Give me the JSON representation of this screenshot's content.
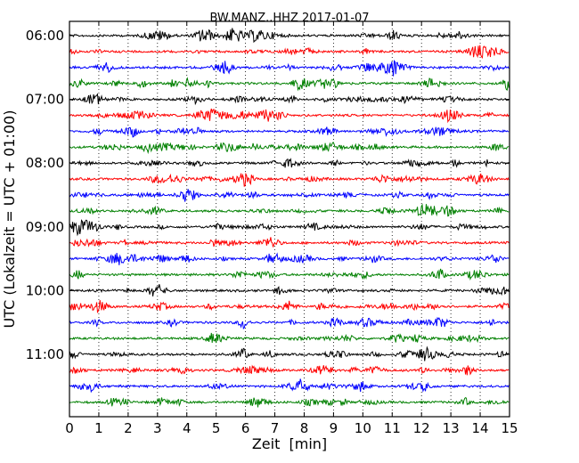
{
  "chart_data": {
    "type": "line",
    "title": "BW.MANZ..HHZ 2017-01-07",
    "xlabel": "Zeit  [min]",
    "ylabel": "UTC (Lokalzeit = UTC + 01:00)",
    "xlim": [
      0,
      15
    ],
    "x_ticks": [
      "0",
      "1",
      "2",
      "3",
      "4",
      "5",
      "6",
      "7",
      "8",
      "9",
      "10",
      "11",
      "12",
      "13",
      "14",
      "15"
    ],
    "y_ticks": [
      "06:00",
      "07:00",
      "08:00",
      "09:00",
      "10:00",
      "11:00"
    ],
    "start_time": "06:00",
    "row_interval_min": 15,
    "row_count": 24,
    "colors": [
      "#000000",
      "#ff0000",
      "#0000ff",
      "#008000"
    ],
    "vertical_grid": "dotted, every 1 min"
  }
}
